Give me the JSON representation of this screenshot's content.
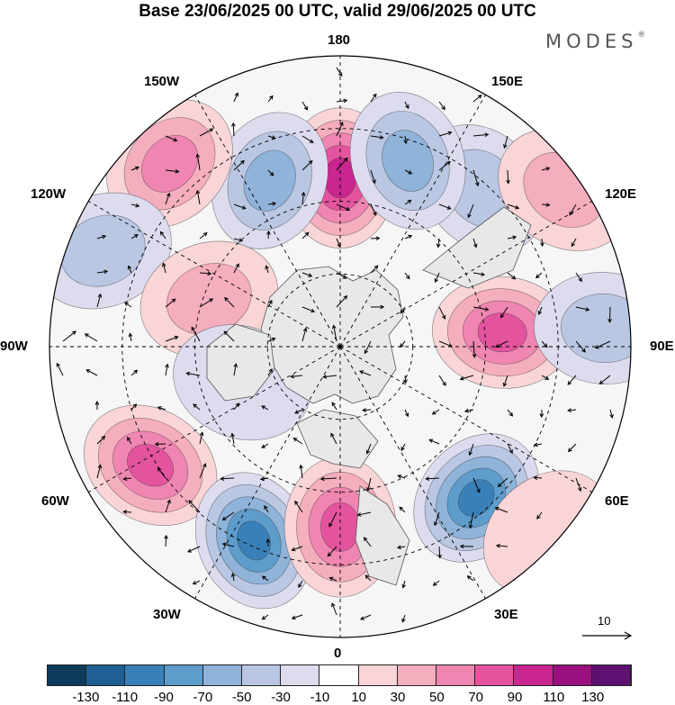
{
  "title": "Base 23/06/2025 00 UTC, valid 29/06/2025 00 UTC",
  "brand": "MODES",
  "brand_mark": "®",
  "longitude_labels": {
    "top": "180",
    "bottom": "0",
    "left": "90W",
    "right": "90E",
    "upper_left_1": "150W",
    "upper_left_2": "120W",
    "upper_right_1": "150E",
    "upper_right_2": "120E",
    "lower_left_1": "60W",
    "lower_left_2": "30W",
    "lower_right_1": "60E",
    "lower_right_2": "30E"
  },
  "reference_vector": {
    "label": "10"
  },
  "colorbar": {
    "colors": [
      "#0d3b5c",
      "#1f5f93",
      "#3a80b8",
      "#5e9ccb",
      "#8fb3d9",
      "#b9c7e3",
      "#dcdcee",
      "#ffffff",
      "#f9d5d7",
      "#f5aebe",
      "#ef86b1",
      "#e4549e",
      "#c9268f",
      "#99107e",
      "#5e1170"
    ],
    "tick_labels": [
      "-130",
      "-110",
      "-90",
      "-70",
      "-50",
      "-30",
      "-10",
      "10",
      "30",
      "50",
      "70",
      "90",
      "110",
      "130"
    ]
  },
  "anomaly_cells": [
    {
      "lon": 180,
      "dist": 0.58,
      "value": 95
    },
    {
      "lon": 157,
      "dist": 0.62,
      "value": -60
    },
    {
      "lon": 137,
      "dist": 0.86,
      "value": 55
    },
    {
      "lon": 112,
      "dist": 0.88,
      "value": -40
    },
    {
      "lon": 110,
      "dist": 0.48,
      "value": 45
    },
    {
      "lon": 58,
      "dist": 0.77,
      "value": 70
    },
    {
      "lon": 24,
      "dist": 0.73,
      "value": -95
    },
    {
      "lon": 0,
      "dist": 0.62,
      "value": 75
    },
    {
      "lon": -42,
      "dist": 0.7,
      "value": -100
    },
    {
      "lon": -95,
      "dist": 0.56,
      "value": 85
    },
    {
      "lon": -94,
      "dist": 0.91,
      "value": -40
    },
    {
      "lon": -138,
      "dist": 0.73,
      "value": -35
    },
    {
      "lon": -160,
      "dist": 0.68,
      "value": -55
    },
    {
      "lon": -125,
      "dist": 0.94,
      "value": 40
    },
    {
      "lon": -48,
      "dist": 0.96,
      "value": 25
    },
    {
      "lon": 70,
      "dist": 0.36,
      "value": -20
    }
  ]
}
